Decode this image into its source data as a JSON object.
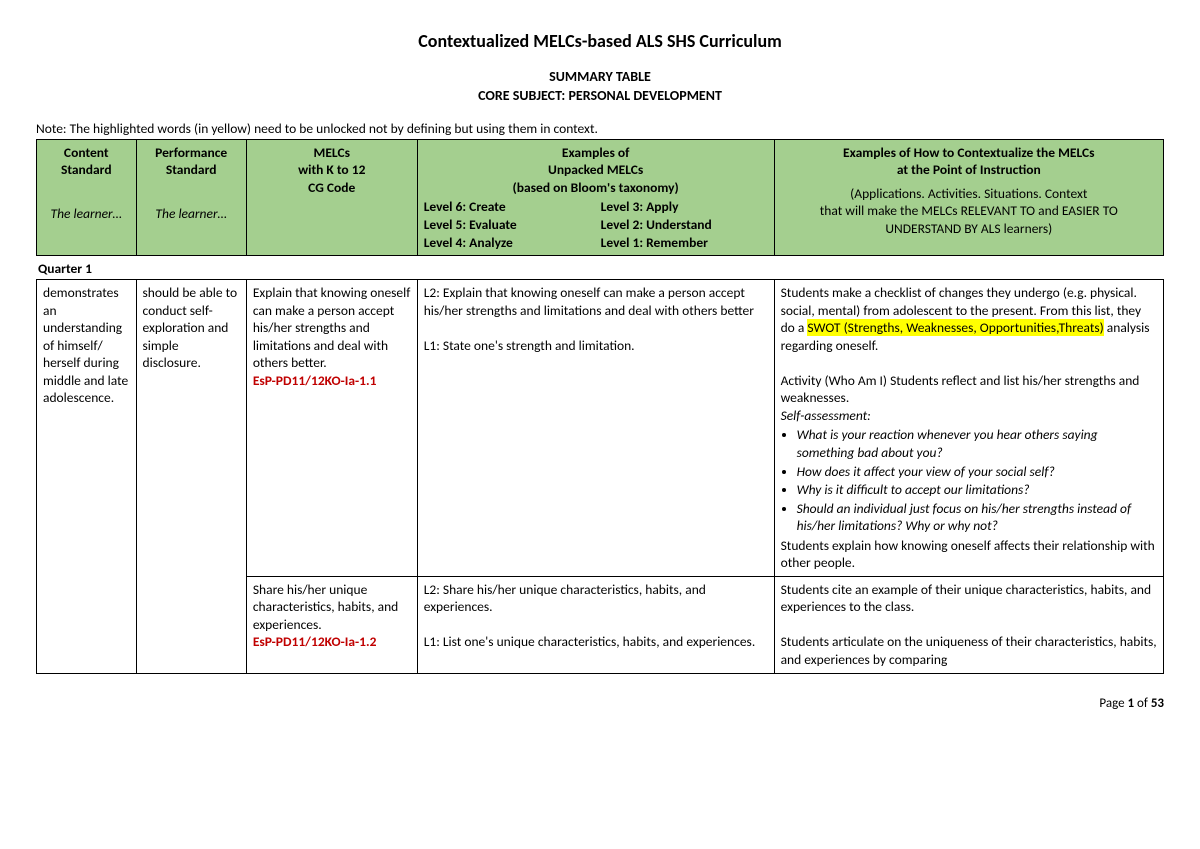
{
  "page": {
    "title": "Contextualized MELCs-based ALS SHS Curriculum",
    "subtitle_line1": "SUMMARY TABLE",
    "subtitle_line2": "CORE SUBJECT: PERSONAL DEVELOPMENT",
    "note": "Note: The highlighted words (in yellow) need to be unlocked not by defining but using them in context.",
    "quarter_label": "Quarter 1",
    "footer_prefix": "Page ",
    "footer_page": "1",
    "footer_mid": " of ",
    "footer_total": "53"
  },
  "colors": {
    "header_bg": "#a4cf8f",
    "highlight_bg": "#ffff00",
    "cgcode_color": "#c00000",
    "border": "#000000"
  },
  "headers": {
    "col1_l1": "Content",
    "col1_l2": "Standard",
    "col1_learner": "The learner…",
    "col2_l1": "Performance",
    "col2_l2": "Standard",
    "col2_learner": "The learner…",
    "col3_l1": "MELCs",
    "col3_l2": "with K to 12",
    "col3_l3": "CG Code",
    "col4_l1": "Examples of",
    "col4_l2": "Unpacked MELCs",
    "col4_l3": "(based on Bloom's taxonomy)",
    "bloom": {
      "l6": "Level 6: Create",
      "l5": "Level 5: Evaluate",
      "l4": "Level 4: Analyze",
      "l3": "Level 3: Apply",
      "l2": "Level 2: Understand",
      "l1": "Level 1: Remember"
    },
    "col5_l1": "Examples of How to Contextualize the MELCs",
    "col5_l2": "at the Point of Instruction",
    "col5_sub1": "(Applications. Activities. Situations. Context",
    "col5_sub2": "that will make the MELCs RELEVANT TO and EASIER TO",
    "col5_sub3": "UNDERSTAND BY ALS learners)"
  },
  "rows": {
    "r1": {
      "content_std": "demonstrates an understanding of himself/ herself during middle and late adolescence.",
      "perf_std": "should be able to conduct self-exploration and simple disclosure.",
      "melc_text": "Explain that knowing oneself can make a person accept his/her strengths and limitations and deal with others better.",
      "cg_code": "EsP-PD11/12KO-Ia-1.1",
      "unpacked_l2": "L2: Explain that knowing oneself can make a person accept his/her strengths and limitations and deal with others better",
      "unpacked_l1": "L1: State one's strength and limitation.",
      "ctx_p1a": "Students  make a checklist of changes they undergo (e.g. physical. social, mental) from adolescent to the present. From this list, they do a ",
      "ctx_hl": "SWOT (Strengths, Weaknesses, Opportunities,Threats)",
      "ctx_p1b": "  analysis regarding oneself.",
      "ctx_p2": "Activity (Who Am I) Students reflect and list his/her strengths and weaknesses.",
      "ctx_sa_label": "Self-assessment:",
      "ctx_q1": "What is your reaction whenever you hear others saying something bad about you?",
      "ctx_q2": "How does it affect your view of your social self?",
      "ctx_q3": "Why is it difficult to accept our limitations?",
      "ctx_q4": "Should an individual just focus on his/her strengths instead of his/her limitations? Why or why not?",
      "ctx_p3": "Students explain how knowing oneself affects their relationship with other people."
    },
    "r2": {
      "melc_text": "Share his/her unique characteristics, habits, and experiences.",
      "cg_code": "EsP-PD11/12KO-Ia-1.2",
      "unpacked_l2": "L2: Share his/her unique characteristics, habits, and experiences.",
      "unpacked_l1": "L1: List one's unique characteristics, habits, and experiences.",
      "ctx_p1": "Students cite an example of their unique characteristics, habits, and experiences to the class.",
      "ctx_p2": "Students articulate on the uniqueness of their characteristics, habits, and experiences by comparing"
    }
  }
}
